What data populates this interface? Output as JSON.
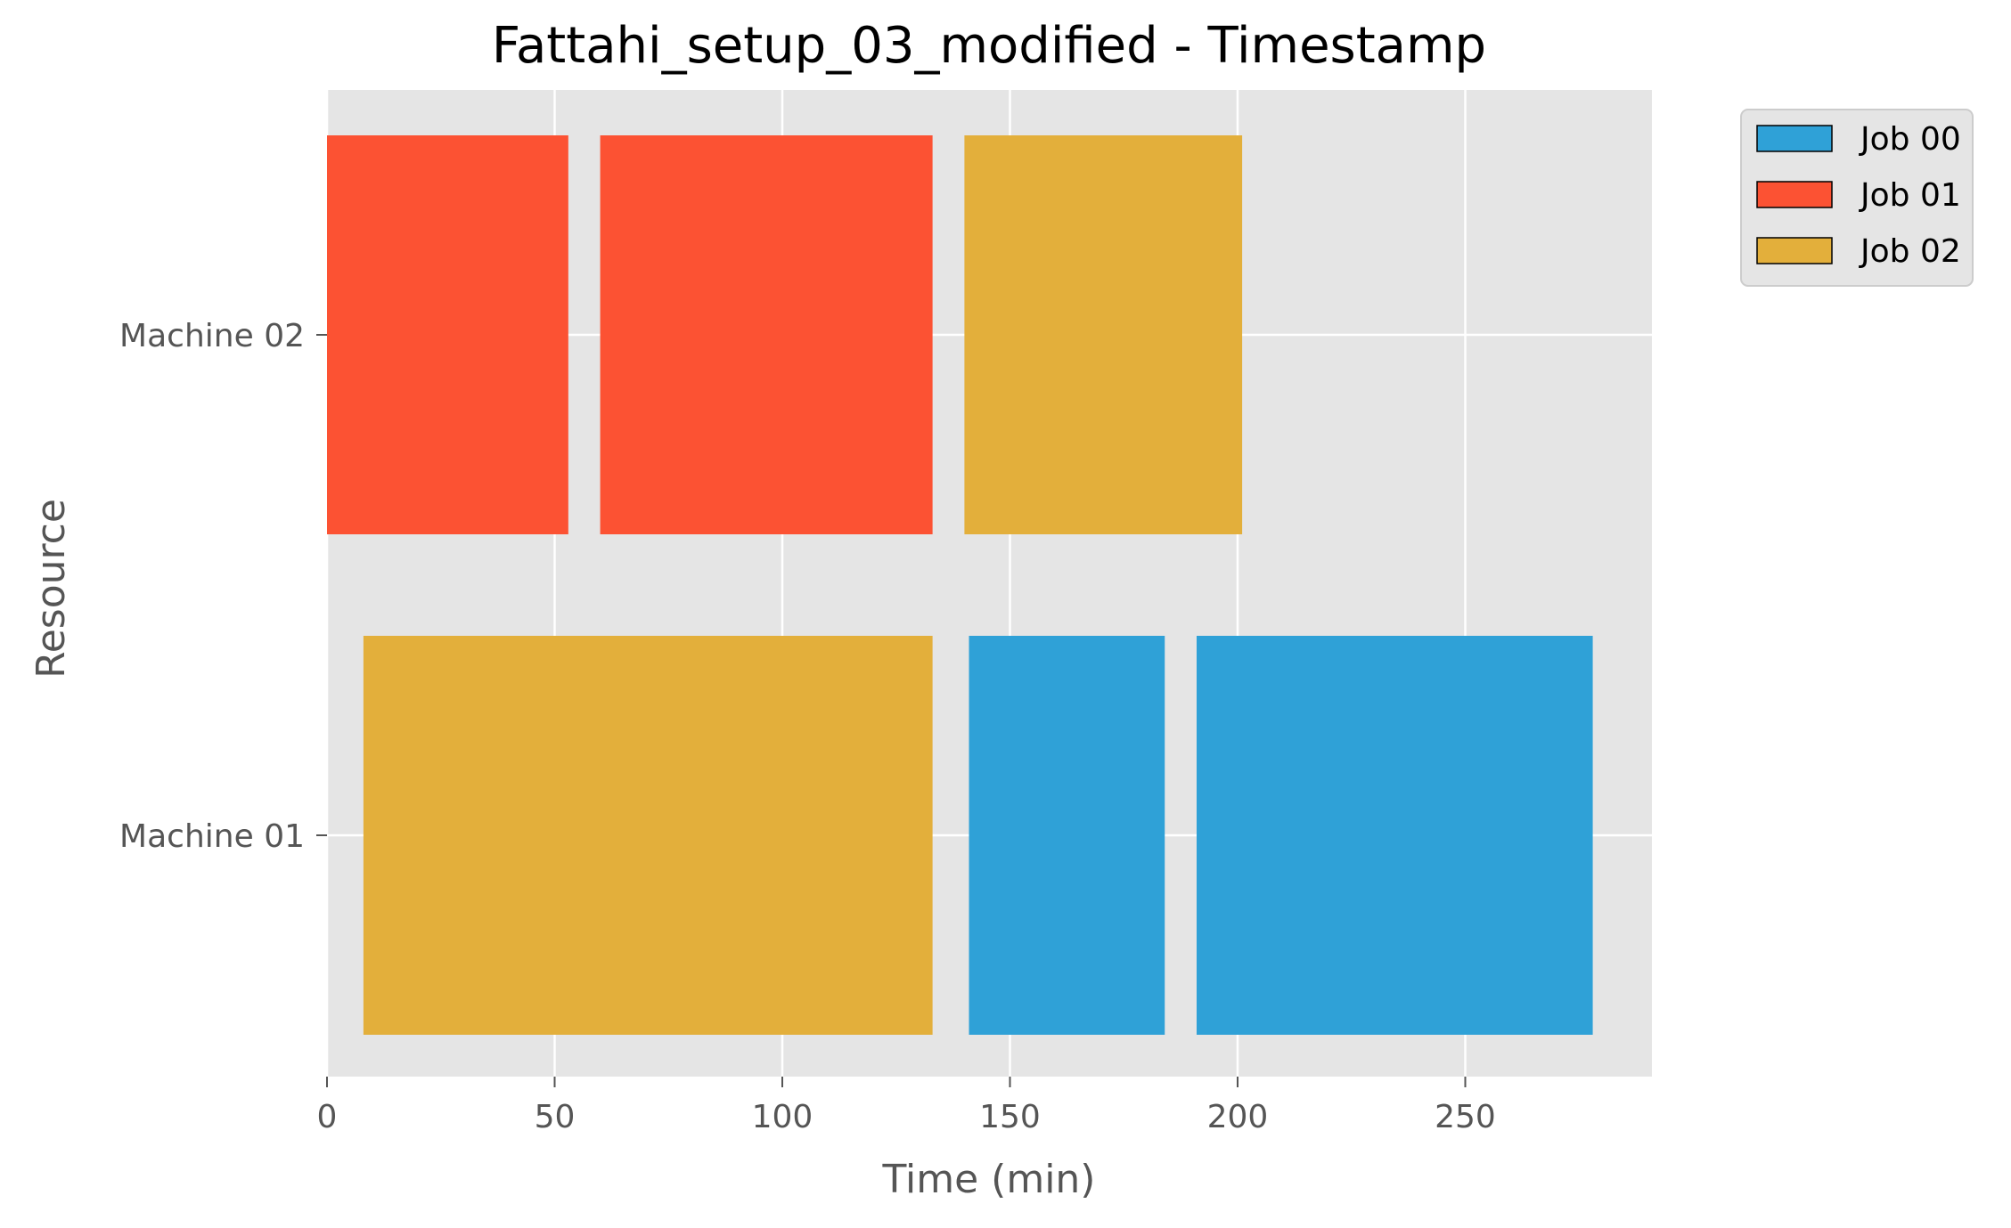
{
  "chart_data": {
    "type": "gantt",
    "title": "Fattahi_setup_03_modified - Timestamp",
    "xlabel": "Time (min)",
    "ylabel": "Resource",
    "xlim": [
      0,
      291
    ],
    "xticks": [
      0,
      50,
      100,
      150,
      200,
      250
    ],
    "categories": [
      "Machine 02",
      "Machine 01"
    ],
    "grid": true,
    "background_color": "#e5e5e5",
    "legend_position": "outside-top-right",
    "series": [
      {
        "name": "Job 00",
        "color": "#2fa1d7",
        "tasks": [
          {
            "resource": "Machine 01",
            "start": 141,
            "end": 184
          },
          {
            "resource": "Machine 01",
            "start": 191,
            "end": 278
          }
        ]
      },
      {
        "name": "Job 01",
        "color": "#fc5233",
        "tasks": [
          {
            "resource": "Machine 02",
            "start": 0,
            "end": 53
          },
          {
            "resource": "Machine 02",
            "start": 60,
            "end": 133
          }
        ]
      },
      {
        "name": "Job 02",
        "color": "#e3af3b",
        "tasks": [
          {
            "resource": "Machine 02",
            "start": 140,
            "end": 201
          },
          {
            "resource": "Machine 01",
            "start": 8,
            "end": 133
          }
        ]
      }
    ]
  }
}
